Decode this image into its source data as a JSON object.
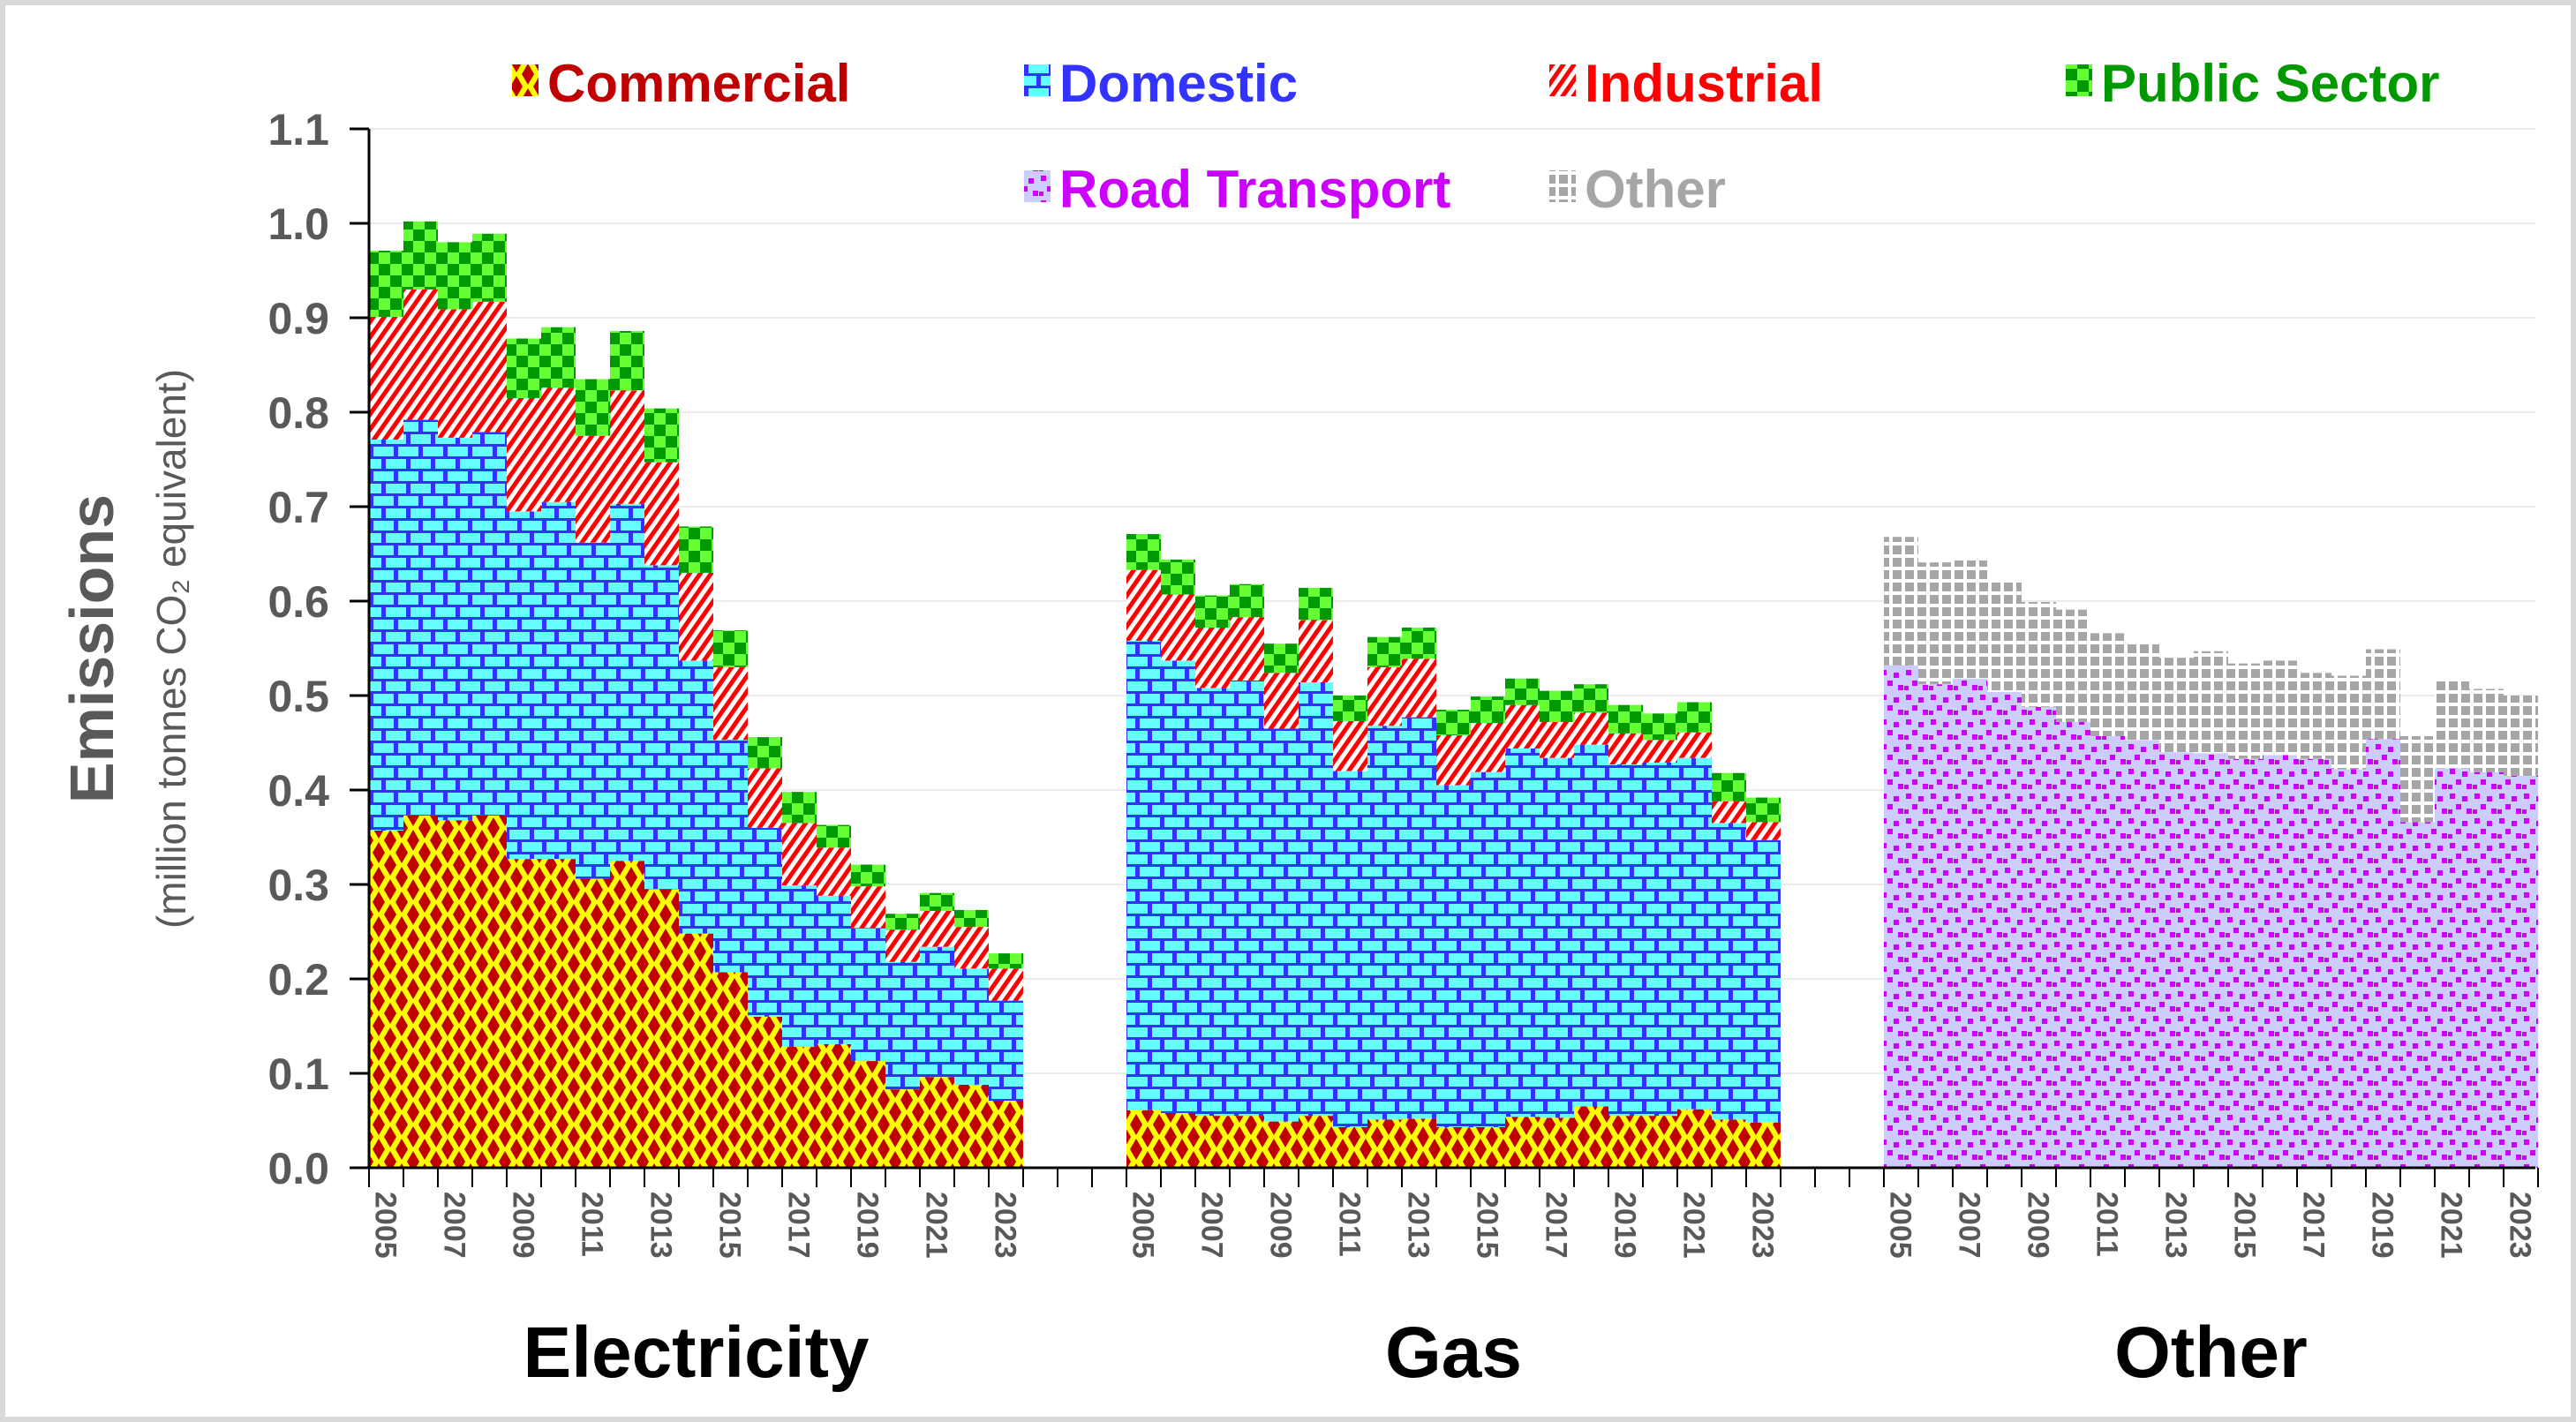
{
  "chart_data": {
    "type": "bar",
    "stacked": true,
    "title": "",
    "ylabel": "Emissions",
    "ylabel_sub": "(million tonnes CO₂ equivalent)",
    "ylim": [
      0,
      1.1
    ],
    "yticks": [
      "0.0",
      "0.1",
      "0.2",
      "0.3",
      "0.4",
      "0.5",
      "0.6",
      "0.7",
      "0.8",
      "0.9",
      "1.0",
      "1.1"
    ],
    "grid": true,
    "legend_position": "top",
    "years": [
      "2005",
      "2006",
      "2007",
      "2008",
      "2009",
      "2010",
      "2011",
      "2012",
      "2013",
      "2014",
      "2015",
      "2016",
      "2017",
      "2018",
      "2019",
      "2020",
      "2021",
      "2022",
      "2023"
    ],
    "year_tick_labels": [
      "2005",
      "2007",
      "2009",
      "2011",
      "2013",
      "2015",
      "2017",
      "2019",
      "2021",
      "2023"
    ],
    "legend": [
      {
        "key": "commercial",
        "label": "Commercial",
        "color": "#c00000"
      },
      {
        "key": "domestic",
        "label": "Domestic",
        "color": "#3333ff"
      },
      {
        "key": "industrial",
        "label": "Industrial",
        "color": "#ff0000"
      },
      {
        "key": "public",
        "label": "Public Sector",
        "color": "#009900"
      },
      {
        "key": "road",
        "label": "Road Transport",
        "color": "#cc00ff"
      },
      {
        "key": "other",
        "label": "Other",
        "color": "#a6a6a6"
      }
    ],
    "groups": [
      {
        "name": "Electricity",
        "series": [
          {
            "key": "commercial",
            "name": "Commercial",
            "values": [
              0.357,
              0.373,
              0.368,
              0.373,
              0.327,
              0.327,
              0.306,
              0.325,
              0.295,
              0.248,
              0.207,
              0.16,
              0.128,
              0.131,
              0.113,
              0.083,
              0.096,
              0.088,
              0.071
            ]
          },
          {
            "key": "domestic",
            "name": "Domestic",
            "values": [
              0.414,
              0.419,
              0.405,
              0.406,
              0.368,
              0.378,
              0.356,
              0.378,
              0.343,
              0.289,
              0.246,
              0.2,
              0.171,
              0.157,
              0.141,
              0.135,
              0.138,
              0.123,
              0.106
            ]
          },
          {
            "key": "industrial",
            "name": "Industrial",
            "values": [
              0.13,
              0.138,
              0.136,
              0.138,
              0.12,
              0.121,
              0.113,
              0.12,
              0.109,
              0.093,
              0.077,
              0.063,
              0.066,
              0.051,
              0.044,
              0.034,
              0.038,
              0.044,
              0.034
            ]
          },
          {
            "key": "public",
            "name": "Public Sector",
            "values": [
              0.07,
              0.072,
              0.071,
              0.072,
              0.063,
              0.064,
              0.06,
              0.063,
              0.057,
              0.049,
              0.039,
              0.033,
              0.033,
              0.024,
              0.023,
              0.017,
              0.019,
              0.018,
              0.016
            ]
          }
        ]
      },
      {
        "name": "Gas",
        "series": [
          {
            "key": "commercial",
            "name": "Commercial",
            "values": [
              0.061,
              0.058,
              0.055,
              0.055,
              0.049,
              0.055,
              0.043,
              0.051,
              0.052,
              0.043,
              0.043,
              0.054,
              0.053,
              0.065,
              0.055,
              0.055,
              0.062,
              0.051,
              0.048
            ]
          },
          {
            "key": "domestic",
            "name": "Domestic",
            "values": [
              0.497,
              0.479,
              0.453,
              0.461,
              0.416,
              0.459,
              0.377,
              0.417,
              0.425,
              0.362,
              0.376,
              0.39,
              0.381,
              0.383,
              0.372,
              0.374,
              0.372,
              0.314,
              0.299
            ]
          },
          {
            "key": "industrial",
            "name": "Industrial",
            "values": [
              0.075,
              0.07,
              0.064,
              0.067,
              0.059,
              0.066,
              0.053,
              0.062,
              0.062,
              0.053,
              0.052,
              0.046,
              0.038,
              0.034,
              0.033,
              0.024,
              0.027,
              0.023,
              0.019
            ]
          },
          {
            "key": "public",
            "name": "Public Sector",
            "values": [
              0.038,
              0.037,
              0.034,
              0.035,
              0.031,
              0.034,
              0.027,
              0.032,
              0.033,
              0.027,
              0.028,
              0.028,
              0.033,
              0.03,
              0.03,
              0.028,
              0.032,
              0.03,
              0.026
            ]
          }
        ]
      },
      {
        "name": "Other",
        "series": [
          {
            "key": "road",
            "name": "Road Transport",
            "values": [
              0.532,
              0.512,
              0.518,
              0.504,
              0.488,
              0.472,
              0.457,
              0.453,
              0.44,
              0.439,
              0.433,
              0.437,
              0.433,
              0.422,
              0.454,
              0.366,
              0.423,
              0.419,
              0.415
            ]
          },
          {
            "key": "other",
            "name": "Other",
            "values": [
              0.136,
              0.129,
              0.125,
              0.117,
              0.111,
              0.119,
              0.109,
              0.104,
              0.1,
              0.108,
              0.101,
              0.1,
              0.091,
              0.099,
              0.095,
              0.091,
              0.092,
              0.088,
              0.085
            ]
          }
        ]
      }
    ]
  }
}
